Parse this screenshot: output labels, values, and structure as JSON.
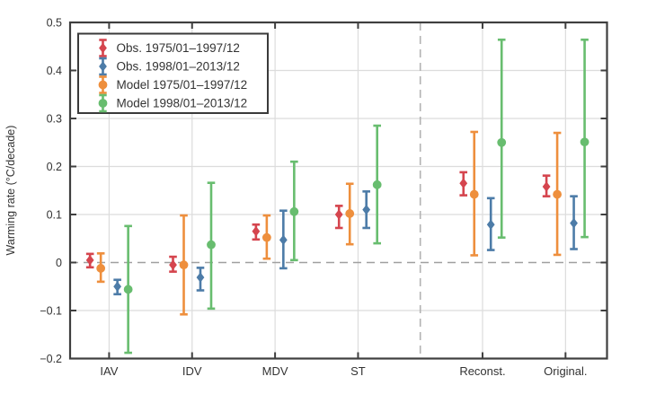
{
  "chart_data": {
    "type": "errorbar",
    "title": "",
    "ylabel": "Warming rate (°C/decade)",
    "xlabel": "",
    "ylim": [
      -0.2,
      0.5
    ],
    "xlim": [
      0.53,
      7.0
    ],
    "yticks": [
      -0.2,
      -0.1,
      0,
      0.1,
      0.2,
      0.3,
      0.4,
      0.5
    ],
    "ytick_labels": [
      "−0.2",
      "−0.1",
      "0",
      "0.1",
      "0.2",
      "0.3",
      "0.4",
      "0.5"
    ],
    "grid": true,
    "zero_line": true,
    "separator_x": 4.75,
    "legend_position": "upper-left",
    "categories": [
      "IAV",
      "IDV",
      "MDV",
      "ST",
      "Reconst.",
      "Original."
    ],
    "category_x": [
      1,
      2,
      3,
      4,
      5.5,
      6.5
    ],
    "series": [
      {
        "name": "Obs. 1975/01–1997/12",
        "color": "#d5454e",
        "marker": "diamond",
        "offset": -0.23,
        "values": [
          0.005,
          -0.005,
          0.065,
          0.1,
          0.165,
          0.158
        ],
        "err_lo": [
          -0.01,
          -0.019,
          0.048,
          0.072,
          0.14,
          0.138
        ],
        "err_hi": [
          0.018,
          0.012,
          0.079,
          0.118,
          0.188,
          0.181
        ]
      },
      {
        "name": "Obs. 1998/01–2013/12",
        "color": "#4d7ca8",
        "marker": "diamond",
        "offset": 0.1,
        "values": [
          -0.05,
          -0.031,
          0.047,
          0.11,
          0.079,
          0.082
        ],
        "err_lo": [
          -0.066,
          -0.058,
          -0.012,
          0.072,
          0.026,
          0.028
        ],
        "err_hi": [
          -0.036,
          -0.011,
          0.108,
          0.148,
          0.134,
          0.138
        ]
      },
      {
        "name": "Model 1975/01–1997/12",
        "color": "#ee8f3d",
        "marker": "circle",
        "offset": -0.1,
        "values": [
          -0.012,
          -0.005,
          0.052,
          0.102,
          0.142,
          0.142
        ],
        "err_lo": [
          -0.04,
          -0.108,
          0.008,
          0.038,
          0.015,
          0.016
        ],
        "err_hi": [
          0.019,
          0.098,
          0.098,
          0.164,
          0.272,
          0.27
        ]
      },
      {
        "name": "Model 1998/01–2013/12",
        "color": "#68bd6f",
        "marker": "circle",
        "offset": 0.23,
        "values": [
          -0.056,
          0.037,
          0.106,
          0.162,
          0.25,
          0.251
        ],
        "err_lo": [
          -0.188,
          -0.096,
          0.005,
          0.04,
          0.052,
          0.053
        ],
        "err_hi": [
          0.076,
          0.166,
          0.21,
          0.285,
          0.464,
          0.464
        ]
      }
    ]
  }
}
